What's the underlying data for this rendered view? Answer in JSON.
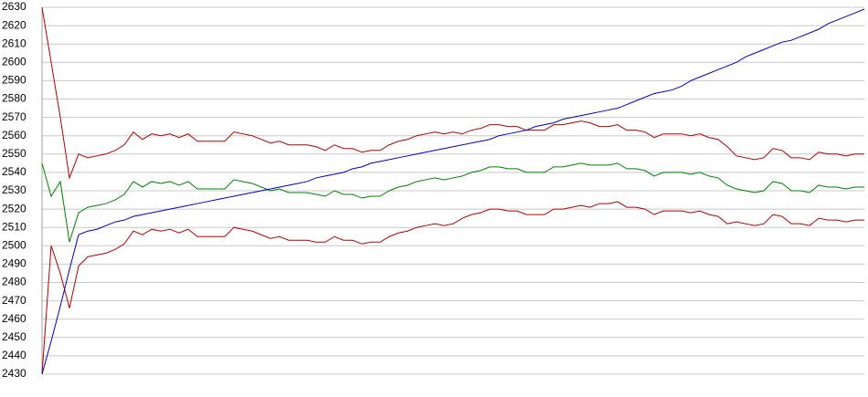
{
  "chart_data": {
    "type": "line",
    "ylim": [
      2430,
      2630
    ],
    "yticks": [
      2430,
      2440,
      2450,
      2460,
      2470,
      2480,
      2490,
      2500,
      2510,
      2520,
      2530,
      2540,
      2550,
      2560,
      2570,
      2580,
      2590,
      2600,
      2610,
      2620,
      2630
    ],
    "grid": true,
    "series": [
      {
        "color": "#b00000",
        "values": [
          2630,
          2600,
          2570,
          2537,
          2550,
          2548,
          2549,
          2550,
          2552,
          2555,
          2562,
          2558,
          2561,
          2560,
          2561,
          2559,
          2561,
          2557,
          2557,
          2557,
          2557,
          2562,
          2561,
          2560,
          2558,
          2556,
          2557,
          2555,
          2555,
          2555,
          2554,
          2552,
          2555,
          2553,
          2553,
          2551,
          2552,
          2552,
          2555,
          2557,
          2558,
          2560,
          2561,
          2562,
          2561,
          2562,
          2561,
          2563,
          2564,
          2566,
          2566,
          2565,
          2565,
          2563,
          2563,
          2563,
          2566,
          2566,
          2567,
          2568,
          2567,
          2565,
          2565,
          2566,
          2563,
          2563,
          2562,
          2559,
          2561,
          2561,
          2561,
          2560,
          2561,
          2559,
          2558,
          2554,
          2549,
          2548,
          2547,
          2548,
          2553,
          2552,
          2548,
          2548,
          2547,
          2551,
          2550,
          2550,
          2549,
          2550,
          2550
        ]
      },
      {
        "color": "#008000",
        "values": [
          2545,
          2527,
          2535,
          2502,
          2518,
          2521,
          2522,
          2523,
          2525,
          2528,
          2535,
          2532,
          2535,
          2534,
          2535,
          2533,
          2535,
          2531,
          2531,
          2531,
          2531,
          2536,
          2535,
          2534,
          2532,
          2530,
          2531,
          2529,
          2529,
          2529,
          2528,
          2527,
          2530,
          2528,
          2528,
          2526,
          2527,
          2527,
          2530,
          2532,
          2533,
          2535,
          2536,
          2537,
          2536,
          2537,
          2538,
          2540,
          2541,
          2543,
          2543,
          2542,
          2542,
          2540,
          2540,
          2540,
          2543,
          2543,
          2544,
          2545,
          2544,
          2544,
          2544,
          2545,
          2542,
          2542,
          2541,
          2538,
          2540,
          2540,
          2540,
          2539,
          2540,
          2538,
          2537,
          2533,
          2531,
          2530,
          2529,
          2530,
          2535,
          2534,
          2530,
          2530,
          2529,
          2533,
          2532,
          2532,
          2531,
          2532,
          2532
        ]
      },
      {
        "color": "#b00000",
        "values": [
          2430,
          2500,
          2485,
          2466,
          2489,
          2494,
          2495,
          2496,
          2498,
          2501,
          2508,
          2506,
          2509,
          2508,
          2509,
          2507,
          2509,
          2505,
          2505,
          2505,
          2505,
          2510,
          2509,
          2508,
          2506,
          2504,
          2505,
          2503,
          2503,
          2503,
          2502,
          2502,
          2505,
          2503,
          2503,
          2501,
          2502,
          2502,
          2505,
          2507,
          2508,
          2510,
          2511,
          2512,
          2511,
          2512,
          2515,
          2517,
          2518,
          2520,
          2520,
          2519,
          2519,
          2517,
          2517,
          2517,
          2520,
          2520,
          2521,
          2522,
          2521,
          2523,
          2523,
          2524,
          2521,
          2521,
          2520,
          2517,
          2519,
          2519,
          2519,
          2518,
          2519,
          2517,
          2516,
          2512,
          2513,
          2512,
          2511,
          2512,
          2517,
          2516,
          2512,
          2512,
          2511,
          2515,
          2514,
          2514,
          2513,
          2514,
          2514
        ]
      },
      {
        "color": "#0000c0",
        "values": [
          2430,
          2448,
          2467,
          2487,
          2506,
          2508,
          2509,
          2511,
          2513,
          2514,
          2516,
          2517,
          2518,
          2519,
          2520,
          2521,
          2522,
          2523,
          2524,
          2525,
          2526,
          2527,
          2528,
          2529,
          2530,
          2531,
          2532,
          2533,
          2534,
          2535,
          2537,
          2538,
          2539,
          2540,
          2542,
          2543,
          2545,
          2546,
          2547,
          2548,
          2549,
          2550,
          2551,
          2552,
          2553,
          2554,
          2555,
          2556,
          2557,
          2558,
          2560,
          2561,
          2562,
          2563,
          2565,
          2566,
          2567,
          2569,
          2570,
          2571,
          2572,
          2573,
          2574,
          2575,
          2577,
          2579,
          2581,
          2583,
          2584,
          2585,
          2587,
          2590,
          2592,
          2594,
          2596,
          2598,
          2600,
          2603,
          2605,
          2607,
          2609,
          2611,
          2612,
          2614,
          2616,
          2618,
          2621,
          2623,
          2625,
          2627,
          2629
        ]
      }
    ]
  }
}
